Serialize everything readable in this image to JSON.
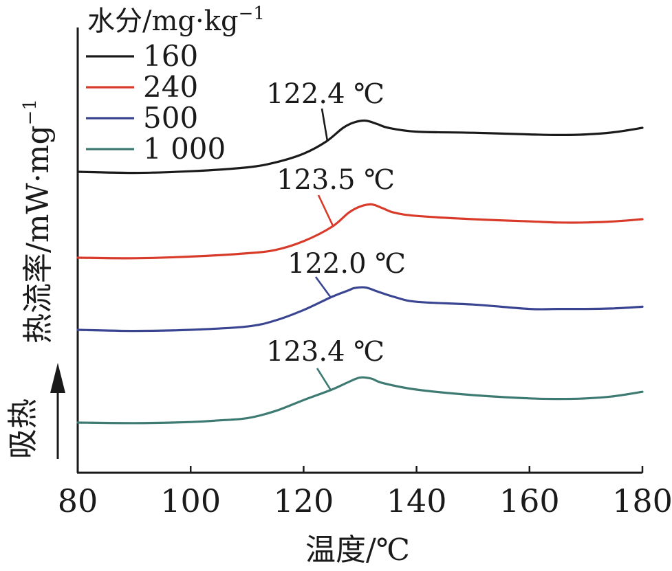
{
  "chart_data": {
    "type": "line",
    "xlabel": "温度/℃",
    "ylabel": "热流率/mW·mg",
    "ylabel_superscript": "−1",
    "direction_label": "吸热",
    "xlim": [
      80,
      180
    ],
    "x_ticks": [
      "80",
      "100",
      "120",
      "140",
      "160",
      "180"
    ],
    "grid": false,
    "y_ticks_shown": false,
    "legend": {
      "title": "水分/mg·kg",
      "title_superscript": "−1",
      "placement": "top-left"
    },
    "series": [
      {
        "name": "160",
        "color": "#1a1a1a",
        "annotation": "122.4 ℃",
        "x": [
          80,
          90,
          100,
          110,
          115,
          120,
          124,
          127,
          129,
          131,
          133,
          135,
          140,
          150,
          160,
          165,
          170,
          175,
          180
        ],
        "y": [
          0.0,
          -0.02,
          0.01,
          0.08,
          0.17,
          0.33,
          0.55,
          0.8,
          0.9,
          0.93,
          0.87,
          0.8,
          0.73,
          0.71,
          0.68,
          0.67,
          0.68,
          0.72,
          0.8
        ]
      },
      {
        "name": "240",
        "color": "#d93b2b",
        "annotation": "123.5 ℃",
        "x": [
          80,
          90,
          100,
          110,
          115,
          120,
          125,
          128,
          130,
          132,
          134,
          136,
          140,
          150,
          160,
          165,
          170,
          175,
          180
        ],
        "y": [
          0.0,
          -0.01,
          0.02,
          0.08,
          0.14,
          0.3,
          0.56,
          0.82,
          0.93,
          0.97,
          0.9,
          0.82,
          0.76,
          0.7,
          0.66,
          0.64,
          0.64,
          0.66,
          0.7
        ]
      },
      {
        "name": "500",
        "color": "#3a4592",
        "annotation": "122.0 ℃",
        "x": [
          80,
          90,
          100,
          110,
          115,
          120,
          125,
          128,
          129,
          131,
          133,
          136,
          140,
          150,
          160,
          165,
          170,
          175,
          180
        ],
        "y": [
          0.0,
          -0.02,
          0.0,
          0.06,
          0.17,
          0.36,
          0.6,
          0.72,
          0.76,
          0.77,
          0.7,
          0.6,
          0.51,
          0.46,
          0.38,
          0.38,
          0.38,
          0.39,
          0.42
        ]
      },
      {
        "name": "1 000",
        "color": "#3d7a72",
        "annotation": "123.4 ℃",
        "x": [
          80,
          90,
          100,
          105,
          110,
          115,
          120,
          125,
          128,
          130,
          132,
          134,
          140,
          150,
          160,
          165,
          170,
          175,
          180
        ],
        "y": [
          0.0,
          -0.01,
          0.01,
          0.04,
          0.08,
          0.21,
          0.41,
          0.6,
          0.74,
          0.82,
          0.8,
          0.72,
          0.6,
          0.5,
          0.44,
          0.43,
          0.44,
          0.48,
          0.56
        ]
      }
    ]
  }
}
